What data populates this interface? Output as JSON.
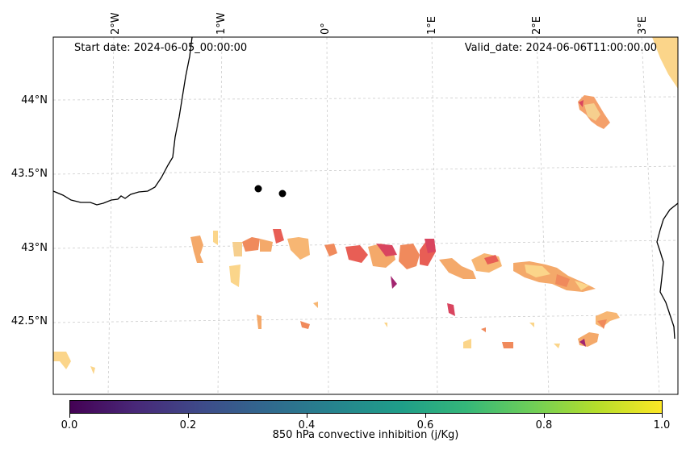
{
  "header": {
    "start_date": "Start date: 2024-06-05_00:00:00",
    "valid_date": "Valid_date: 2024-06-06T11:00:00.00"
  },
  "axes": {
    "lon_labels": [
      "2°W",
      "1°W",
      "0°",
      "1°E",
      "2°E",
      "3°E"
    ],
    "lat_labels": [
      "44°N",
      "43.5°N",
      "43°N",
      "42.5°N"
    ]
  },
  "colorbar": {
    "title": "850 hPa convective inhibition (j/Kg)",
    "ticks": [
      "0.0",
      "0.2",
      "0.4",
      "0.6",
      "0.8",
      "1.0"
    ],
    "colormap": "viridis"
  },
  "chart_data": {
    "type": "heatmap",
    "title": "",
    "xlabel": "",
    "ylabel": "",
    "xlim": [
      -2.5,
      3.2
    ],
    "ylim": [
      42.0,
      44.4
    ],
    "field_colormap": "magma/spectral (orange-yellow-red)",
    "field_colors": [
      "#fcd98b",
      "#f7a465",
      "#f0704f",
      "#d94262",
      "#a2246f"
    ],
    "markers": [
      {
        "lon": -0.6,
        "lat": 43.39,
        "color": "#000000"
      },
      {
        "lon": -0.4,
        "lat": 43.36,
        "color": "#000000"
      }
    ],
    "gridlines": true
  }
}
